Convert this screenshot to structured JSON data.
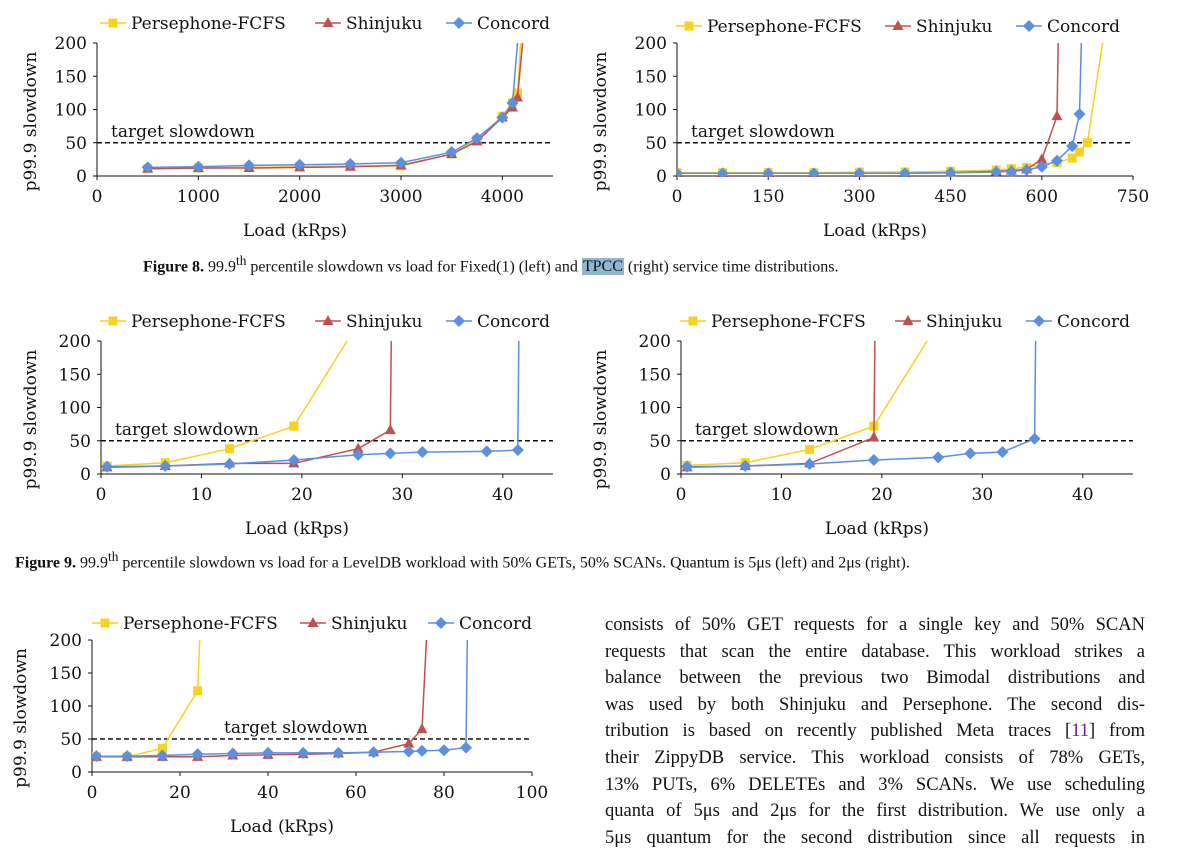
{
  "colors": {
    "persephone": "#f7d21e",
    "shinjuku": "#c0504d",
    "concord": "#5b8fe0",
    "reference": "#111111"
  },
  "figure8": {
    "label": "Figure 8.",
    "pre": " 99.9",
    "sup": "th",
    "mid": " percentile slowdown vs load for Fixed(1) (left) and ",
    "highlight": "TPCC",
    "post": " (right) service time distributions."
  },
  "figure9": {
    "label": "Figure 9.",
    "pre": " 99.9",
    "sup": "th",
    "post": " percentile slowdown vs load for a LevelDB workload with 50% GETs, 50% SCANs. Quantum is 5μs (left) and 2μs (right)."
  },
  "body_text": {
    "line1": "consists of 50% GET requests for a single key and 50% SCAN",
    "line2": "requests that scan the entire database. This workload strikes a",
    "line3": "balance between the previous two Bimodal distributions and",
    "line4": "was used by both Shinjuku and Persephone. The second dis-",
    "line5a": "tribution is based on recently published Meta traces [",
    "line5cite": "11",
    "line5b": "] from",
    "line6": "their ZippyDB service. This workload consists of 78% GETs,",
    "line7": "13% PUTs, 6% DELETEs and 3% SCANs. We use scheduling",
    "line8": "quanta of 5μs and 2μs for the first distribution. We use only a",
    "line9": "5μs quantum for the second distribution since all requests in"
  },
  "chart_data": [
    {
      "id": "fig8-left",
      "type": "line",
      "xlabel": "Load (kRps)",
      "ylabel": "p99.9 slowdown",
      "xlim": [
        0,
        4500
      ],
      "ylim": [
        0,
        200
      ],
      "xticks": [
        0,
        1000,
        2000,
        3000,
        4000
      ],
      "xtick_labels": [
        "0",
        "1000",
        "2000",
        "3000",
        "4000"
      ],
      "yticks": [
        0,
        50,
        100,
        150,
        200
      ],
      "reference_line": {
        "y": 50,
        "label": "target slowdown"
      },
      "legend": [
        "Persephone-FCFS",
        "Shinjuku",
        "Concord"
      ],
      "series": [
        {
          "name": "Persephone-FCFS",
          "marker": "square",
          "points": [
            [
              500,
              11
            ],
            [
              1000,
              12
            ],
            [
              1500,
              13
            ],
            [
              2000,
              14
            ],
            [
              2500,
              15
            ],
            [
              3000,
              15
            ],
            [
              3500,
              33
            ],
            [
              3750,
              55
            ],
            [
              4000,
              90
            ],
            [
              4100,
              110
            ],
            [
              4150,
              125
            ],
            [
              4180,
              200
            ]
          ]
        },
        {
          "name": "Shinjuku",
          "marker": "triangle",
          "points": [
            [
              500,
              11
            ],
            [
              1000,
              12
            ],
            [
              1500,
              12
            ],
            [
              2000,
              13
            ],
            [
              2500,
              14
            ],
            [
              3000,
              16
            ],
            [
              3500,
              33
            ],
            [
              3750,
              52
            ],
            [
              4000,
              88
            ],
            [
              4100,
              103
            ],
            [
              4150,
              118
            ],
            [
              4200,
              200
            ]
          ]
        },
        {
          "name": "Concord",
          "marker": "diamond",
          "points": [
            [
              500,
              13
            ],
            [
              1000,
              14
            ],
            [
              1500,
              16
            ],
            [
              2000,
              17
            ],
            [
              2500,
              18
            ],
            [
              3000,
              20
            ],
            [
              3500,
              36
            ],
            [
              3750,
              57
            ],
            [
              4000,
              88
            ],
            [
              4100,
              110
            ],
            [
              4150,
              200
            ]
          ]
        }
      ]
    },
    {
      "id": "fig8-right",
      "type": "line",
      "xlabel": "Load (kRps)",
      "ylabel": "p99.9 slowdown",
      "xlim": [
        0,
        750
      ],
      "ylim": [
        0,
        200
      ],
      "xticks": [
        0,
        150,
        300,
        450,
        600,
        750
      ],
      "xtick_labels": [
        "0",
        "150",
        "300",
        "450",
        "600",
        "750"
      ],
      "yticks": [
        0,
        50,
        100,
        150,
        200
      ],
      "reference_line": {
        "y": 50,
        "label": "target slowdown"
      },
      "legend": [
        "Persephone-FCFS",
        "Shinjuku",
        "Concord"
      ],
      "series": [
        {
          "name": "Persephone-FCFS",
          "marker": "square",
          "points": [
            [
              0,
              5
            ],
            [
              75,
              5
            ],
            [
              150,
              5
            ],
            [
              225,
              5
            ],
            [
              300,
              6
            ],
            [
              375,
              6
            ],
            [
              450,
              7
            ],
            [
              525,
              9
            ],
            [
              550,
              11
            ],
            [
              575,
              13
            ],
            [
              600,
              17
            ],
            [
              625,
              20
            ],
            [
              650,
              27
            ],
            [
              662,
              36
            ],
            [
              675,
              50
            ],
            [
              700,
              200
            ]
          ]
        },
        {
          "name": "Shinjuku",
          "marker": "triangle",
          "points": [
            [
              0,
              4
            ],
            [
              75,
              4
            ],
            [
              150,
              4
            ],
            [
              225,
              4
            ],
            [
              300,
              4
            ],
            [
              375,
              4
            ],
            [
              450,
              5
            ],
            [
              525,
              7
            ],
            [
              550,
              8
            ],
            [
              575,
              10
            ],
            [
              600,
              25
            ],
            [
              625,
              90
            ],
            [
              627,
              200
            ]
          ]
        },
        {
          "name": "Concord",
          "marker": "diamond",
          "points": [
            [
              0,
              4
            ],
            [
              75,
              4
            ],
            [
              150,
              4
            ],
            [
              225,
              4
            ],
            [
              300,
              4
            ],
            [
              375,
              4
            ],
            [
              450,
              5
            ],
            [
              525,
              6
            ],
            [
              550,
              7
            ],
            [
              575,
              9
            ],
            [
              600,
              14
            ],
            [
              625,
              23
            ],
            [
              650,
              45
            ],
            [
              662,
              93
            ],
            [
              665,
              200
            ]
          ]
        }
      ]
    },
    {
      "id": "fig9-left",
      "type": "line",
      "xlabel": "Load (kRps)",
      "ylabel": "p99.9 slowdown",
      "xlim": [
        0,
        45
      ],
      "ylim": [
        0,
        200
      ],
      "xticks": [
        0,
        10,
        20,
        30,
        40
      ],
      "xtick_labels": [
        "0",
        "10",
        "20",
        "30",
        "40"
      ],
      "yticks": [
        0,
        50,
        100,
        150,
        200
      ],
      "reference_line": {
        "y": 50,
        "label": "target slowdown"
      },
      "legend": [
        "Persephone-FCFS",
        "Shinjuku",
        "Concord"
      ],
      "series": [
        {
          "name": "Persephone-FCFS",
          "marker": "square",
          "points": [
            [
              0.6,
              12
            ],
            [
              6.4,
              17
            ],
            [
              12.8,
              38
            ],
            [
              19.2,
              72
            ],
            [
              24.5,
              200
            ]
          ]
        },
        {
          "name": "Shinjuku",
          "marker": "triangle",
          "points": [
            [
              0.6,
              10
            ],
            [
              6.4,
              12
            ],
            [
              12.8,
              16
            ],
            [
              19.2,
              16
            ],
            [
              25.6,
              38
            ],
            [
              28.8,
              66
            ],
            [
              28.9,
              200
            ]
          ]
        },
        {
          "name": "Concord",
          "marker": "diamond",
          "points": [
            [
              0.6,
              11
            ],
            [
              6.4,
              12
            ],
            [
              12.8,
              15
            ],
            [
              19.2,
              21
            ],
            [
              25.6,
              29
            ],
            [
              28.8,
              31
            ],
            [
              32.0,
              33
            ],
            [
              38.4,
              34
            ],
            [
              41.5,
              36
            ],
            [
              41.6,
              200
            ]
          ]
        }
      ]
    },
    {
      "id": "fig9-right",
      "type": "line",
      "xlabel": "Load (kRps)",
      "ylabel": "p99.9 slowdown",
      "xlim": [
        0,
        45
      ],
      "ylim": [
        0,
        200
      ],
      "xticks": [
        0,
        10,
        20,
        30,
        40
      ],
      "xtick_labels": [
        "0",
        "10",
        "20",
        "30",
        "40"
      ],
      "yticks": [
        0,
        50,
        100,
        150,
        200
      ],
      "reference_line": {
        "y": 50,
        "label": "target slowdown"
      },
      "legend": [
        "Persephone-FCFS",
        "Shinjuku",
        "Concord"
      ],
      "series": [
        {
          "name": "Persephone-FCFS",
          "marker": "square",
          "points": [
            [
              0.6,
              13
            ],
            [
              6.4,
              17
            ],
            [
              12.8,
              37
            ],
            [
              19.2,
              72
            ],
            [
              24.5,
              200
            ]
          ]
        },
        {
          "name": "Shinjuku",
          "marker": "triangle",
          "points": [
            [
              0.6,
              10
            ],
            [
              6.4,
              12
            ],
            [
              12.8,
              16
            ],
            [
              19.2,
              55
            ],
            [
              19.3,
              200
            ]
          ]
        },
        {
          "name": "Concord",
          "marker": "diamond",
          "points": [
            [
              0.6,
              11
            ],
            [
              6.4,
              12
            ],
            [
              12.8,
              15
            ],
            [
              19.2,
              21
            ],
            [
              25.6,
              25
            ],
            [
              28.8,
              31
            ],
            [
              32.0,
              33
            ],
            [
              35.2,
              53
            ],
            [
              35.3,
              200
            ]
          ]
        }
      ]
    },
    {
      "id": "fig10",
      "type": "line",
      "xlabel": "Load (kRps)",
      "ylabel": "p99.9 slowdown",
      "xlim": [
        0,
        100
      ],
      "ylim": [
        0,
        200
      ],
      "xticks": [
        0,
        20,
        40,
        60,
        80,
        100
      ],
      "xtick_labels": [
        "0",
        "20",
        "40",
        "60",
        "80",
        "100"
      ],
      "yticks": [
        0,
        50,
        100,
        150,
        200
      ],
      "reference_line": {
        "y": 50,
        "label": "target slowdown"
      },
      "legend": [
        "Persephone-FCFS",
        "Shinjuku",
        "Concord"
      ],
      "series": [
        {
          "name": "Persephone-FCFS",
          "marker": "square",
          "points": [
            [
              1,
              23
            ],
            [
              8,
              23
            ],
            [
              16,
              36
            ],
            [
              24,
              123
            ],
            [
              24.5,
              200
            ]
          ]
        },
        {
          "name": "Shinjuku",
          "marker": "triangle",
          "points": [
            [
              1,
              23
            ],
            [
              8,
              23
            ],
            [
              16,
              23
            ],
            [
              24,
              23
            ],
            [
              32,
              25
            ],
            [
              40,
              26
            ],
            [
              48,
              27
            ],
            [
              56,
              28
            ],
            [
              64,
              30
            ],
            [
              72,
              43
            ],
            [
              75,
              65
            ],
            [
              76,
              200
            ]
          ]
        },
        {
          "name": "Concord",
          "marker": "diamond",
          "points": [
            [
              1,
              24
            ],
            [
              8,
              24
            ],
            [
              16,
              25
            ],
            [
              24,
              27
            ],
            [
              32,
              28
            ],
            [
              40,
              29
            ],
            [
              48,
              29
            ],
            [
              56,
              29
            ],
            [
              64,
              30
            ],
            [
              72,
              31
            ],
            [
              75,
              32
            ],
            [
              80,
              33
            ],
            [
              85,
              37
            ],
            [
              85.3,
              200
            ]
          ]
        }
      ]
    }
  ]
}
